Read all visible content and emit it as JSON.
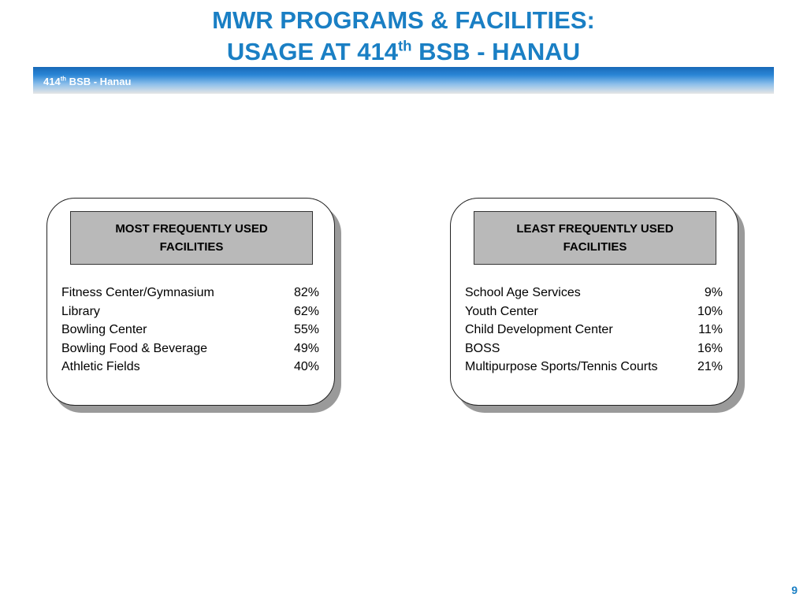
{
  "title": {
    "line1": "MWR PROGRAMS & FACILITIES:",
    "line2_prefix": "USAGE AT 414",
    "line2_sup": "th",
    "line2_suffix": " BSB - HANAU"
  },
  "header_band": {
    "prefix": "414",
    "sup": "th",
    "suffix": " BSB - Hanau"
  },
  "most_used": {
    "heading": "MOST FREQUENTLY USED FACILITIES",
    "rows": [
      {
        "name": "Fitness Center/Gymnasium",
        "value": "82%"
      },
      {
        "name": "Library",
        "value": "62%"
      },
      {
        "name": "Bowling Center",
        "value": "55%"
      },
      {
        "name": "Bowling Food & Beverage",
        "value": "49%"
      },
      {
        "name": "Athletic Fields",
        "value": "40%"
      }
    ]
  },
  "least_used": {
    "heading": "LEAST FREQUENTLY USED FACILITIES",
    "rows": [
      {
        "name": "School Age Services",
        "value": "9%"
      },
      {
        "name": "Youth Center",
        "value": "10%"
      },
      {
        "name": "Child Development Center",
        "value": "11%"
      },
      {
        "name": "BOSS",
        "value": "16%"
      },
      {
        "name": "Multipurpose Sports/Tennis Courts",
        "value": "21%"
      }
    ]
  },
  "page_number": "9",
  "colors": {
    "title": "#1a7fc4",
    "band_top": "#1869b8",
    "heading_fill": "#b9b9b9",
    "shadow": "#9a9a9a"
  }
}
